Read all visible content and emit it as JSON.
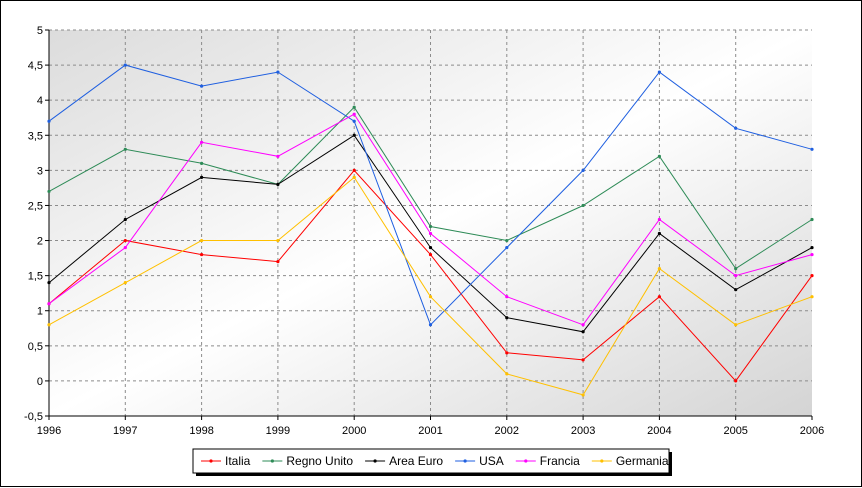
{
  "chart_data": {
    "type": "line",
    "title": "",
    "xlabel": "",
    "ylabel": "",
    "x": [
      "1996",
      "1997",
      "1998",
      "1999",
      "2000",
      "2001",
      "2002",
      "2003",
      "2004",
      "2005",
      "2006"
    ],
    "ylim": [
      -0.5,
      5
    ],
    "yticks": [
      -0.5,
      0,
      0.5,
      1,
      1.5,
      2,
      2.5,
      3,
      3.5,
      4,
      4.5,
      5
    ],
    "ytick_labels": [
      "-0,5",
      "0",
      "0,5",
      "1",
      "1,5",
      "2",
      "2,5",
      "3",
      "3,5",
      "4",
      "4,5",
      "5"
    ],
    "grid": true,
    "legend_position": "bottom",
    "series": [
      {
        "name": "Italia",
        "color": "#ff0000",
        "values": [
          1.1,
          2.0,
          1.8,
          1.7,
          3.0,
          1.8,
          0.4,
          0.3,
          1.2,
          0.0,
          1.5
        ]
      },
      {
        "name": "Regno Unito",
        "color": "#2e8b57",
        "values": [
          2.7,
          3.3,
          3.1,
          2.8,
          3.9,
          2.2,
          2.0,
          2.5,
          3.2,
          1.6,
          2.3
        ]
      },
      {
        "name": "Area Euro",
        "color": "#000000",
        "values": [
          1.4,
          2.3,
          2.9,
          2.8,
          3.5,
          1.9,
          0.9,
          0.7,
          2.1,
          1.3,
          1.9
        ]
      },
      {
        "name": "USA",
        "color": "#1f5fe0",
        "values": [
          3.7,
          4.5,
          4.2,
          4.4,
          3.7,
          0.8,
          1.9,
          3.0,
          4.4,
          3.6,
          3.3
        ]
      },
      {
        "name": "Francia",
        "color": "#ff00ff",
        "values": [
          1.1,
          1.9,
          3.4,
          3.2,
          3.8,
          2.1,
          1.2,
          0.8,
          2.3,
          1.5,
          1.8
        ]
      },
      {
        "name": "Germania",
        "color": "#ffc000",
        "values": [
          0.8,
          1.4,
          2.0,
          2.0,
          2.9,
          1.2,
          0.1,
          -0.2,
          1.6,
          0.8,
          1.2
        ]
      }
    ]
  }
}
